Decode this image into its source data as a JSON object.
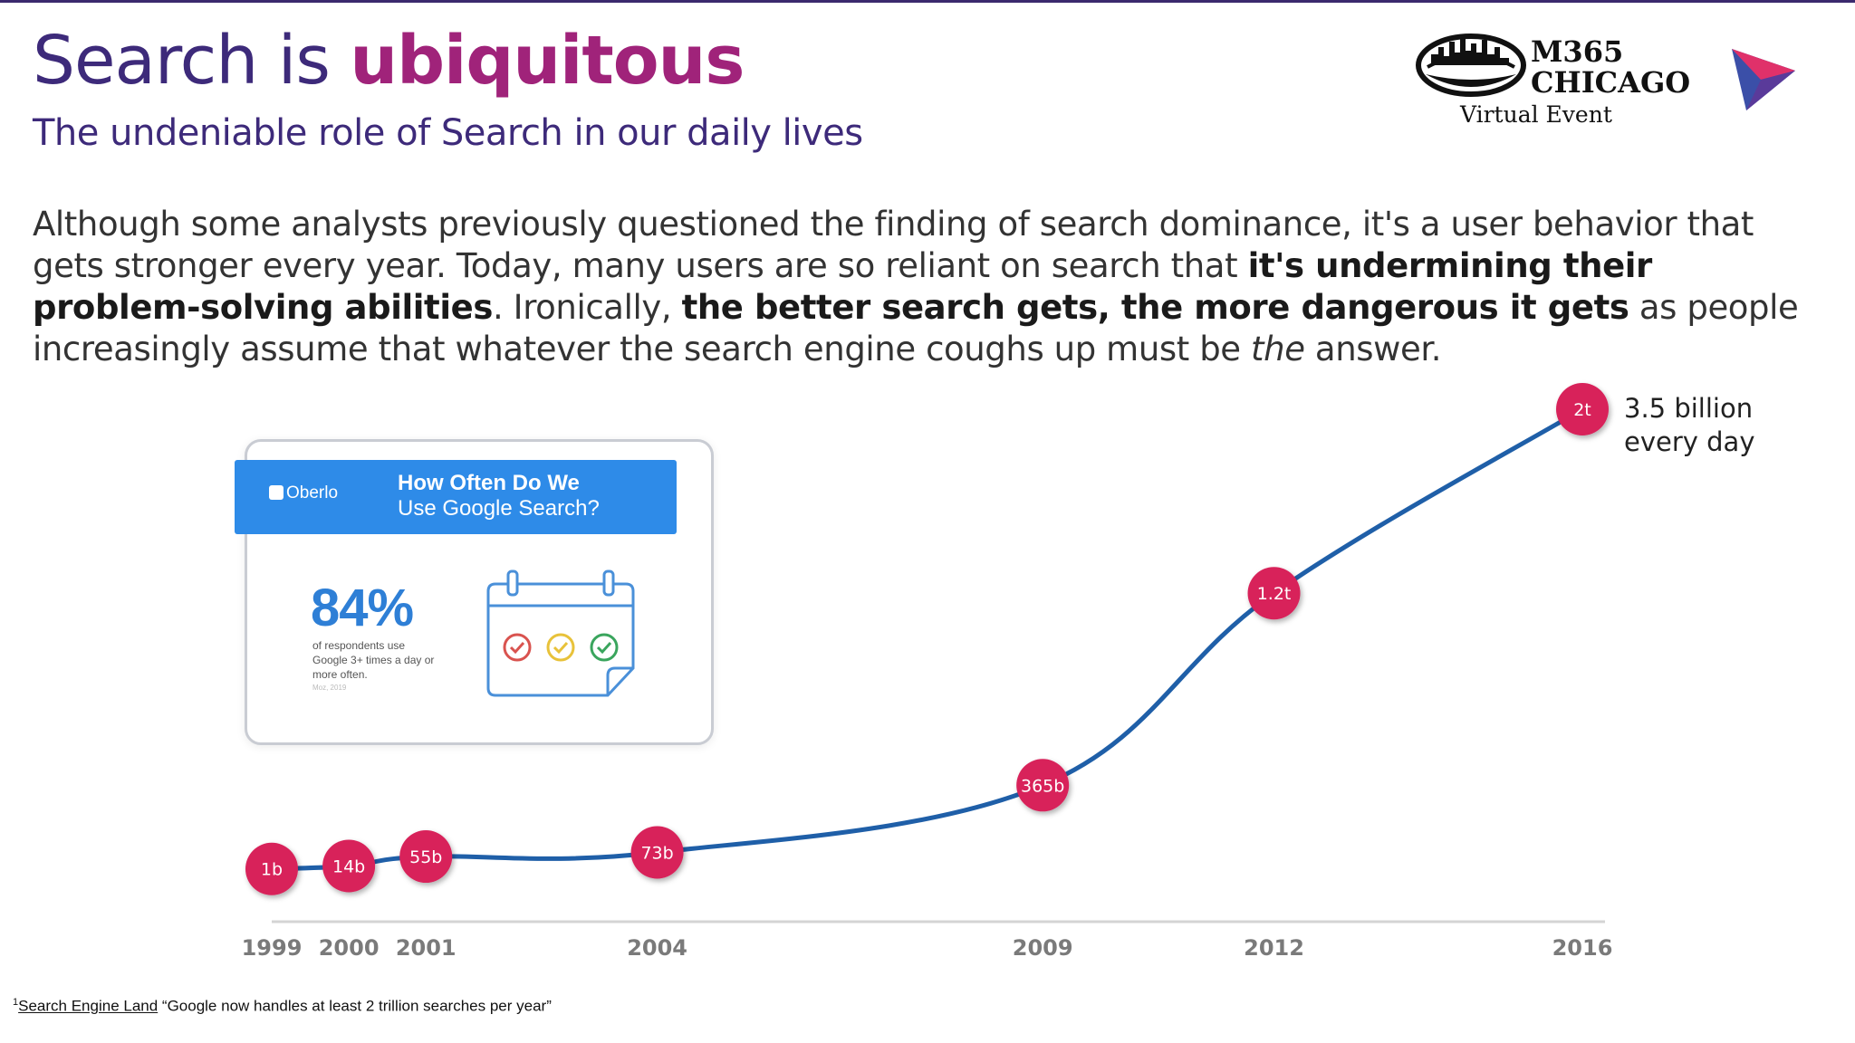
{
  "title": {
    "normal": "Search is ",
    "strong": "ubiquitous"
  },
  "subtitle": "The undeniable role of Search in our daily lives",
  "paragraph": {
    "p1": "Although some analysts previously questioned the finding of search dominance, it's a user behavior that gets stronger every year. Today, many users are so reliant on search that ",
    "b1": "it's undermining their problem-solving abilities",
    "p2": ". Ironically, ",
    "b2": "the better search gets, the more dangerous it gets",
    "p3": " as people increasingly assume that whatever the search engine coughs up must be ",
    "i1": "the",
    "p4": " answer."
  },
  "logo": {
    "line1": "M365",
    "line2": "CHICAGO",
    "line3": "Virtual Event"
  },
  "card": {
    "brand": "Oberlo",
    "heading1": "How Often Do We",
    "heading2": "Use Google Search?",
    "percent": "84%",
    "description": "of respondents use Google 3+ times a day or more often.",
    "source": "Moz, 2019",
    "check_colors": [
      "#d9534f",
      "#e8c23a",
      "#3aa55d"
    ]
  },
  "chart_data": {
    "type": "line",
    "x": [
      1999,
      2000,
      2001,
      2004,
      2009,
      2012,
      2016
    ],
    "tick_labels": [
      "1999",
      "2000",
      "2001",
      "2004",
      "2009",
      "2012",
      "2016"
    ],
    "values_billions": [
      1,
      14,
      55,
      73,
      365,
      1200,
      2000
    ],
    "point_labels": [
      "1b",
      "14b",
      "55b",
      "73b",
      "365b",
      "1.2t",
      "2t"
    ],
    "annotation": "3.5 billion every day",
    "annotation_lines": [
      "3.5 billion",
      "every day"
    ],
    "title": "",
    "xlabel": "",
    "ylabel": "",
    "line_color": "#1f5fa8",
    "marker_color": "#d8225a"
  },
  "footnote": {
    "sup": "1",
    "link": "Search Engine Land",
    "text": " “Google now handles at least 2 trillion searches per year”"
  }
}
